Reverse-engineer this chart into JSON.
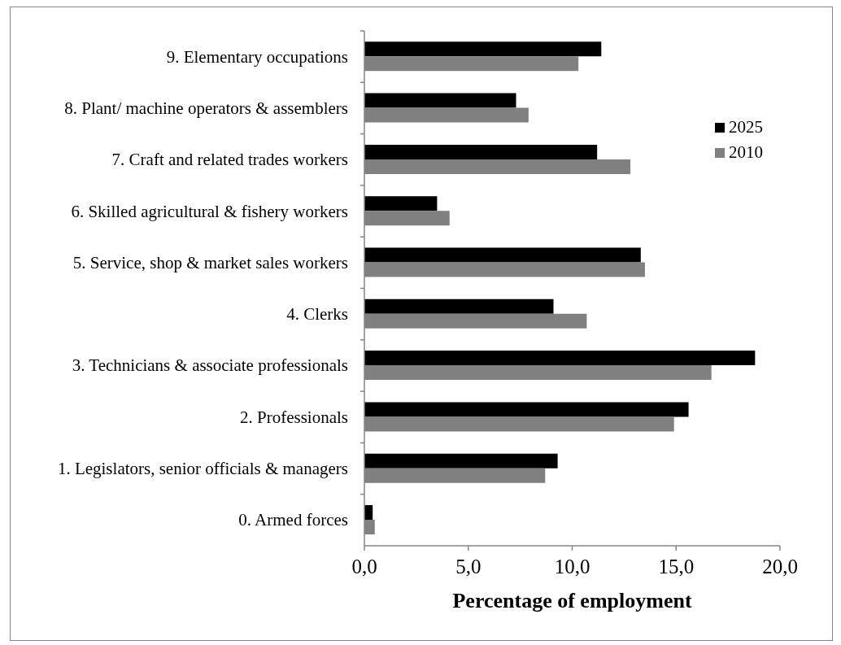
{
  "chart_data": {
    "type": "bar",
    "orientation": "horizontal",
    "categories": [
      "9. Elementary occupations",
      "8. Plant/ machine operators & assemblers",
      "7. Craft and related trades workers",
      "6. Skilled agricultural & fishery workers",
      "5. Service, shop & market sales workers",
      "4. Clerks",
      "3. Technicians & associate professionals",
      "2. Professionals",
      "1. Legislators, senior officials & managers",
      "0. Armed forces"
    ],
    "series": [
      {
        "name": "2025",
        "color": "#000000",
        "values": [
          11.4,
          7.3,
          11.2,
          3.5,
          13.3,
          9.1,
          18.8,
          15.6,
          9.3,
          0.4
        ]
      },
      {
        "name": "2010",
        "color": "#808080",
        "values": [
          10.3,
          7.9,
          12.8,
          4.1,
          13.5,
          10.7,
          16.7,
          14.9,
          8.7,
          0.5
        ]
      }
    ],
    "xlabel": "Percentage of employment",
    "xlim": [
      0,
      20
    ],
    "xticks": [
      {
        "value": 0,
        "label": "0,0"
      },
      {
        "value": 5,
        "label": "5,0"
      },
      {
        "value": 10,
        "label": "10,0"
      },
      {
        "value": 15,
        "label": "15,0"
      },
      {
        "value": 20,
        "label": "20,0"
      }
    ],
    "legend": "top right"
  }
}
